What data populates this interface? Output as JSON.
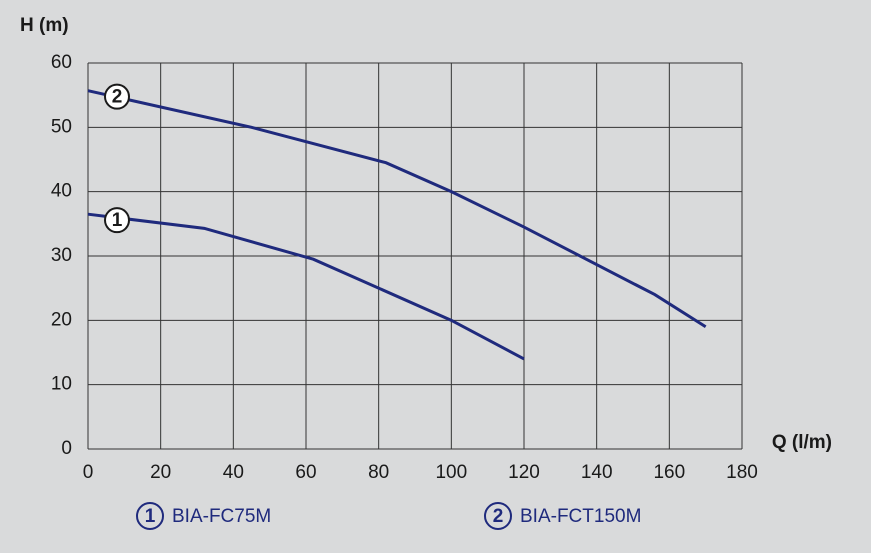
{
  "chart_data": {
    "type": "line",
    "y_label": "H (m)",
    "x_label": "Q (l/m)",
    "xlim": [
      0,
      180
    ],
    "xticks": [
      0,
      20,
      40,
      60,
      80,
      100,
      120,
      140,
      160,
      180
    ],
    "ylim": [
      0,
      60
    ],
    "yticks": [
      0,
      10,
      20,
      30,
      40,
      50,
      60
    ],
    "grid": true,
    "series": [
      {
        "name": "BIA-FC75M",
        "label": "1",
        "color": "#1f2a7d",
        "x": [
          0,
          32,
          62,
          100,
          120
        ],
        "values": [
          36.5,
          34.3,
          29.5,
          20,
          14
        ]
      },
      {
        "name": "BIA-FCT150M",
        "label": "2",
        "color": "#1f2a7d",
        "x": [
          0,
          45,
          82,
          100,
          120,
          156,
          170
        ],
        "values": [
          55.7,
          50,
          44.5,
          40,
          34.5,
          24,
          19
        ]
      }
    ]
  }
}
